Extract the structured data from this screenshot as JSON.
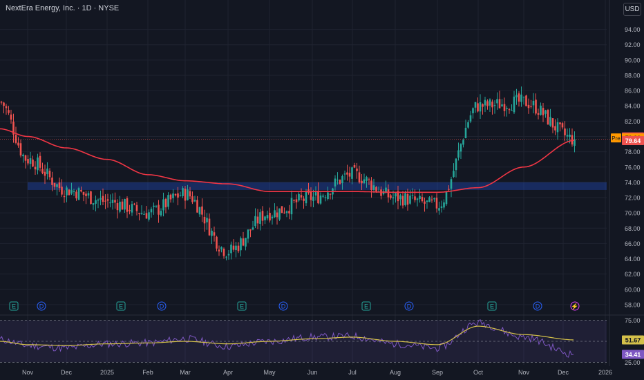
{
  "header": {
    "title": "NextEra Energy, Inc. · 1D · NYSE",
    "currency_button": "USD"
  },
  "colors": {
    "background": "#131722",
    "grid": "#1f2330",
    "text": "#b2b5be",
    "up": "#26a69a",
    "down": "#ef5350",
    "ma": "#f23645",
    "zone": "#2962ff",
    "rsi": "#7e57c2",
    "rsi_ma": "#d4c04a",
    "pre": "#ff9800",
    "rsi_badge": "#7e57c2",
    "rsi_ma_badge": "#d4c04a"
  },
  "chart_data": [
    {
      "type": "candlestick",
      "title": "NextEra Energy, Inc. · 1D · NYSE",
      "x_labels": [
        "Nov",
        "Dec",
        "2025",
        "Feb",
        "Mar",
        "Apr",
        "May",
        "Jun",
        "Jul",
        "Aug",
        "Sep",
        "Oct",
        "Nov",
        "Dec",
        "2026"
      ],
      "y_ticks": [
        "58.00",
        "60.00",
        "62.00",
        "64.00",
        "66.00",
        "68.00",
        "70.00",
        "72.00",
        "74.00",
        "76.00",
        "78.00",
        "80.00",
        "82.00",
        "84.00",
        "86.00",
        "88.00",
        "90.00",
        "92.00",
        "94.00"
      ],
      "ylim": [
        57,
        95.5
      ],
      "monthly_path": [
        {
          "month": "Oct 2024",
          "price": 84.5
        },
        {
          "month": "Nov 2024",
          "price": 77.0
        },
        {
          "month": "Dec 2024",
          "price": 73.0
        },
        {
          "month": "Jan 2025",
          "price": 71.5
        },
        {
          "month": "Feb 2025",
          "price": 70.0
        },
        {
          "month": "Mar 2025",
          "price": 72.5
        },
        {
          "month": "Apr 2025",
          "price": 65.0
        },
        {
          "month": "May 2025",
          "price": 70.0
        },
        {
          "month": "Jun 2025",
          "price": 72.0
        },
        {
          "month": "Jul 2025",
          "price": 75.0
        },
        {
          "month": "Aug 2025",
          "price": 72.0
        },
        {
          "month": "Sep 2025",
          "price": 71.0
        },
        {
          "month": "Oct 2025",
          "price": 84.0
        },
        {
          "month": "Nov 2025",
          "price": 84.5
        },
        {
          "month": "Dec 2025",
          "price": 79.64
        }
      ],
      "moving_average_path": [
        {
          "month": "Oct 2024",
          "value": 81.0
        },
        {
          "month": "Nov 2024",
          "value": 80.0
        },
        {
          "month": "Dec 2024",
          "value": 78.5
        },
        {
          "month": "Jan 2025",
          "value": 77.0
        },
        {
          "month": "Feb 2025",
          "value": 75.0
        },
        {
          "month": "Mar 2025",
          "value": 74.2
        },
        {
          "month": "Apr 2025",
          "value": 73.8
        },
        {
          "month": "May 2025",
          "value": 72.8
        },
        {
          "month": "Jun 2025",
          "value": 72.8
        },
        {
          "month": "Jul 2025",
          "value": 72.8
        },
        {
          "month": "Aug 2025",
          "value": 72.7
        },
        {
          "month": "Sep 2025",
          "value": 72.7
        },
        {
          "month": "Oct 2025",
          "value": 73.3
        },
        {
          "month": "Nov 2025",
          "value": 76.0
        },
        {
          "month": "Dec 2025",
          "value": 79.5
        }
      ],
      "zone": {
        "low": 73.0,
        "high": 74.0
      },
      "events": [
        {
          "month": "Oct 2024",
          "label": "E"
        },
        {
          "month": "Nov 2024",
          "label": "D"
        },
        {
          "month": "Jan 2025",
          "label": "E"
        },
        {
          "month": "Feb 2025",
          "label": "D"
        },
        {
          "month": "Apr 2025",
          "label": "E"
        },
        {
          "month": "May 2025",
          "label": "D"
        },
        {
          "month": "Jul 2025",
          "label": "E"
        },
        {
          "month": "Aug 2025",
          "label": "D"
        },
        {
          "month": "Oct 2025",
          "label": "E"
        },
        {
          "month": "Nov 2025",
          "label": "D"
        },
        {
          "month": "Dec 2025",
          "label": "⚡"
        }
      ],
      "price_badges": {
        "high": "79.94",
        "pre_label": "Pre",
        "pre": "79.90",
        "last": "79.64"
      },
      "last_price": 79.64
    },
    {
      "type": "line",
      "title": "",
      "y_ticks": [
        "75.00",
        "25.00"
      ],
      "levels": [
        75,
        50,
        25
      ],
      "ylim": [
        22,
        78
      ],
      "rsi_path": [
        {
          "month": "Oct 2024",
          "value": 52
        },
        {
          "month": "Nov 2024",
          "value": 45
        },
        {
          "month": "Dec 2024",
          "value": 42
        },
        {
          "month": "Jan 2025",
          "value": 47
        },
        {
          "month": "Feb 2025",
          "value": 48
        },
        {
          "month": "Mar 2025",
          "value": 53
        },
        {
          "month": "Apr 2025",
          "value": 44
        },
        {
          "month": "May 2025",
          "value": 50
        },
        {
          "month": "Jun 2025",
          "value": 55
        },
        {
          "month": "Jul 2025",
          "value": 56
        },
        {
          "month": "Aug 2025",
          "value": 47
        },
        {
          "month": "Sep 2025",
          "value": 42
        },
        {
          "month": "Oct 2025",
          "value": 72
        },
        {
          "month": "Nov 2025",
          "value": 55
        },
        {
          "month": "Dec 2025",
          "value": 34.41
        }
      ],
      "rsi_ma_path": [
        {
          "month": "Oct 2024",
          "value": 50
        },
        {
          "month": "Nov 2024",
          "value": 46
        },
        {
          "month": "Dec 2024",
          "value": 45
        },
        {
          "month": "Jan 2025",
          "value": 47
        },
        {
          "month": "Feb 2025",
          "value": 48
        },
        {
          "month": "Mar 2025",
          "value": 50
        },
        {
          "month": "Apr 2025",
          "value": 47
        },
        {
          "month": "May 2025",
          "value": 50
        },
        {
          "month": "Jun 2025",
          "value": 53
        },
        {
          "month": "Jul 2025",
          "value": 55
        },
        {
          "month": "Aug 2025",
          "value": 50
        },
        {
          "month": "Sep 2025",
          "value": 46
        },
        {
          "month": "Oct 2025",
          "value": 68
        },
        {
          "month": "Nov 2025",
          "value": 58
        },
        {
          "month": "Dec 2025",
          "value": 51.67
        }
      ],
      "badges": {
        "rsi_ma": "51.67",
        "rsi": "34.41"
      }
    }
  ]
}
